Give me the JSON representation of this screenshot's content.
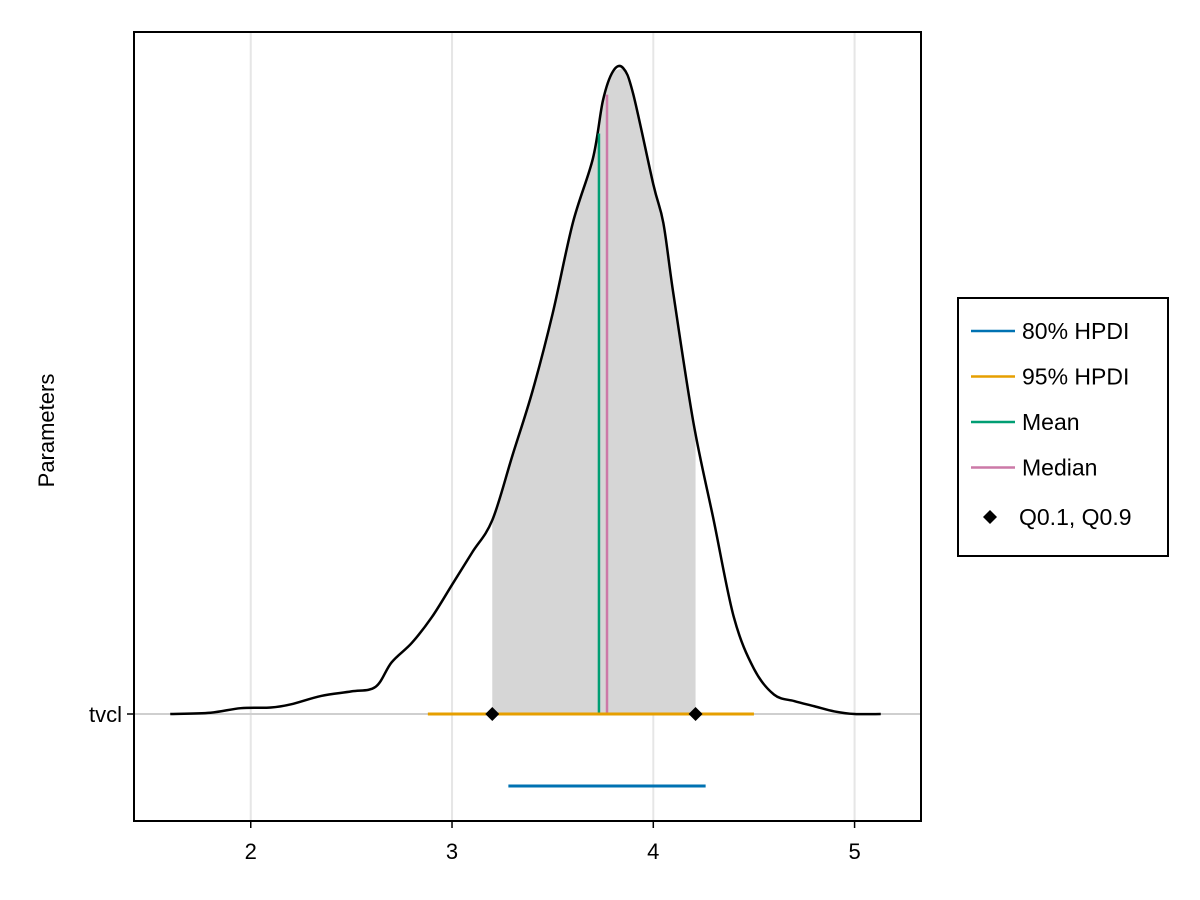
{
  "chart_data": {
    "type": "density",
    "xlabel": "",
    "ylabel": "Parameters",
    "xlim": [
      1.42,
      5.33
    ],
    "x_ticks": [
      2,
      3,
      4,
      5
    ],
    "y_tick_labels": [
      "tvcl"
    ],
    "grid": true,
    "legend_position": "right",
    "parameter": "tvcl",
    "density_curve": [
      [
        1.6,
        0.0
      ],
      [
        1.8,
        0.002
      ],
      [
        1.95,
        0.009
      ],
      [
        2.1,
        0.01
      ],
      [
        2.2,
        0.015
      ],
      [
        2.35,
        0.028
      ],
      [
        2.5,
        0.035
      ],
      [
        2.62,
        0.042
      ],
      [
        2.7,
        0.08
      ],
      [
        2.8,
        0.11
      ],
      [
        2.9,
        0.15
      ],
      [
        3.0,
        0.2
      ],
      [
        3.1,
        0.25
      ],
      [
        3.2,
        0.3
      ],
      [
        3.3,
        0.4
      ],
      [
        3.4,
        0.5
      ],
      [
        3.5,
        0.62
      ],
      [
        3.6,
        0.76
      ],
      [
        3.7,
        0.86
      ],
      [
        3.75,
        0.95
      ],
      [
        3.8,
        0.995
      ],
      [
        3.85,
        1.0
      ],
      [
        3.9,
        0.96
      ],
      [
        4.0,
        0.82
      ],
      [
        4.05,
        0.76
      ],
      [
        4.1,
        0.65
      ],
      [
        4.2,
        0.45
      ],
      [
        4.3,
        0.3
      ],
      [
        4.4,
        0.15
      ],
      [
        4.5,
        0.07
      ],
      [
        4.6,
        0.03
      ],
      [
        4.7,
        0.02
      ],
      [
        4.8,
        0.012
      ],
      [
        4.9,
        0.004
      ],
      [
        5.0,
        0.0
      ],
      [
        5.13,
        0.0
      ]
    ],
    "shaded_region": [
      3.2,
      4.21
    ],
    "mean": 3.73,
    "median": 3.77,
    "hpdi_80": [
      3.28,
      4.26
    ],
    "hpdi_95": [
      2.88,
      4.5
    ],
    "quantiles": [
      3.2,
      4.21
    ],
    "legend": [
      {
        "label": "80% HPDI",
        "color": "#0072b2",
        "marker": "line"
      },
      {
        "label": "95% HPDI",
        "color": "#e69f00",
        "marker": "line"
      },
      {
        "label": "Mean",
        "color": "#009e73",
        "marker": "line"
      },
      {
        "label": "Median",
        "color": "#cc79a7",
        "marker": "line"
      },
      {
        "label": "Q0.1, Q0.9",
        "color": "#000000",
        "marker": "diamond"
      }
    ]
  }
}
